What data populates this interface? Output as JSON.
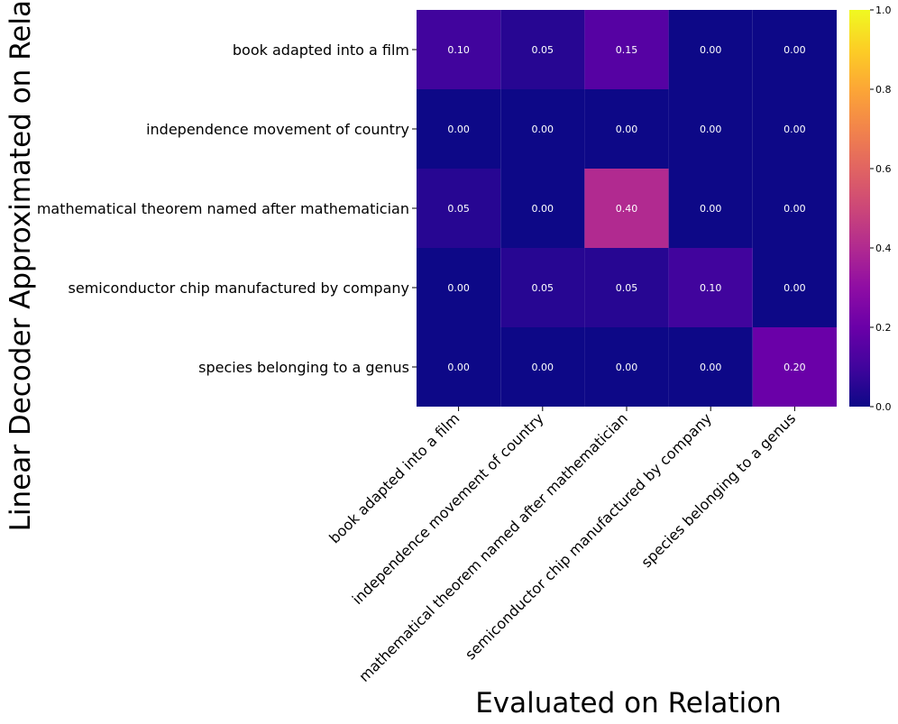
{
  "chart_data": {
    "type": "heatmap",
    "title": "",
    "xlabel": "Evaluated on Relation",
    "ylabel": "Linear Decoder Approximated on Relation",
    "x_categories": [
      "book adapted into a film",
      "independence movement of country",
      "mathematical theorem named after mathematician",
      "semiconductor chip manufactured by company",
      "species belonging to a genus"
    ],
    "y_categories": [
      "book adapted into a film",
      "independence movement of country",
      "mathematical theorem named after mathematician",
      "semiconductor chip manufactured by company",
      "species belonging to a genus"
    ],
    "values": [
      [
        0.1,
        0.05,
        0.15,
        0.0,
        0.0
      ],
      [
        0.0,
        0.0,
        0.0,
        0.0,
        0.0
      ],
      [
        0.05,
        0.0,
        0.4,
        0.0,
        0.0
      ],
      [
        0.0,
        0.05,
        0.05,
        0.1,
        0.0
      ],
      [
        0.0,
        0.0,
        0.0,
        0.0,
        0.2
      ]
    ],
    "colormap": "plasma",
    "vmin": 0.0,
    "vmax": 1.0,
    "colorbar_ticks": [
      "0.0",
      "0.2",
      "0.4",
      "0.6",
      "0.8",
      "1.0"
    ]
  }
}
